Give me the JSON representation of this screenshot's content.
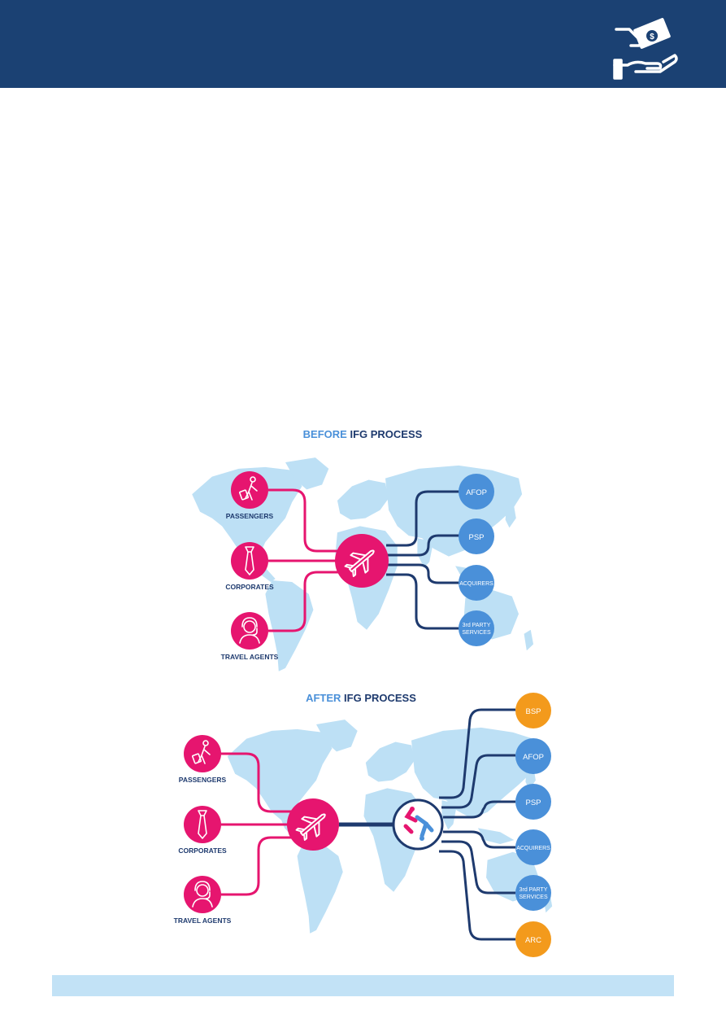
{
  "header": {
    "icon": "hand-money-icon",
    "color": "#1b4173"
  },
  "colors": {
    "pink": "#e6156f",
    "blue_node": "#4a90d9",
    "orange": "#f39a1c",
    "navy": "#1e3a6e",
    "map": "#bde0f5",
    "title_blue": "#4a90d9",
    "title_navy": "#1e3a6e"
  },
  "before": {
    "title_prefix": "BEFORE",
    "title_suffix": " IFG PROCESS",
    "sources": [
      {
        "label": "PASSENGERS",
        "icon": "traveler-luggage-icon"
      },
      {
        "label": "CORPORATES",
        "icon": "necktie-icon"
      },
      {
        "label": "TRAVEL AGENTS",
        "icon": "headset-agent-icon"
      }
    ],
    "hub_icon": "airplane-icon",
    "targets": [
      {
        "line1": "AFOP",
        "line2": ""
      },
      {
        "line1": "PSP",
        "line2": ""
      },
      {
        "line1": "ACQUIRERS",
        "line2": ""
      },
      {
        "line1": "3rd PARTY",
        "line2": "SERVICES"
      }
    ]
  },
  "after": {
    "title_prefix": "AFTER",
    "title_suffix": " IFG PROCESS",
    "sources": [
      {
        "label": "PASSENGERS",
        "icon": "traveler-luggage-icon"
      },
      {
        "label": "CORPORATES",
        "icon": "necktie-icon"
      },
      {
        "label": "TRAVEL AGENTS",
        "icon": "headset-agent-icon"
      }
    ],
    "hub_icon": "airplane-icon",
    "gateway_icon": "ifg-network-logo-icon",
    "targets": [
      {
        "line1": "BSP",
        "line2": "",
        "color": "orange"
      },
      {
        "line1": "AFOP",
        "line2": "",
        "color": "blue"
      },
      {
        "line1": "PSP",
        "line2": "",
        "color": "blue"
      },
      {
        "line1": "ACQUIRERS",
        "line2": "",
        "color": "blue"
      },
      {
        "line1": "3rd PARTY",
        "line2": "SERVICES",
        "color": "blue"
      },
      {
        "line1": "ARC",
        "line2": "",
        "color": "orange"
      }
    ]
  }
}
